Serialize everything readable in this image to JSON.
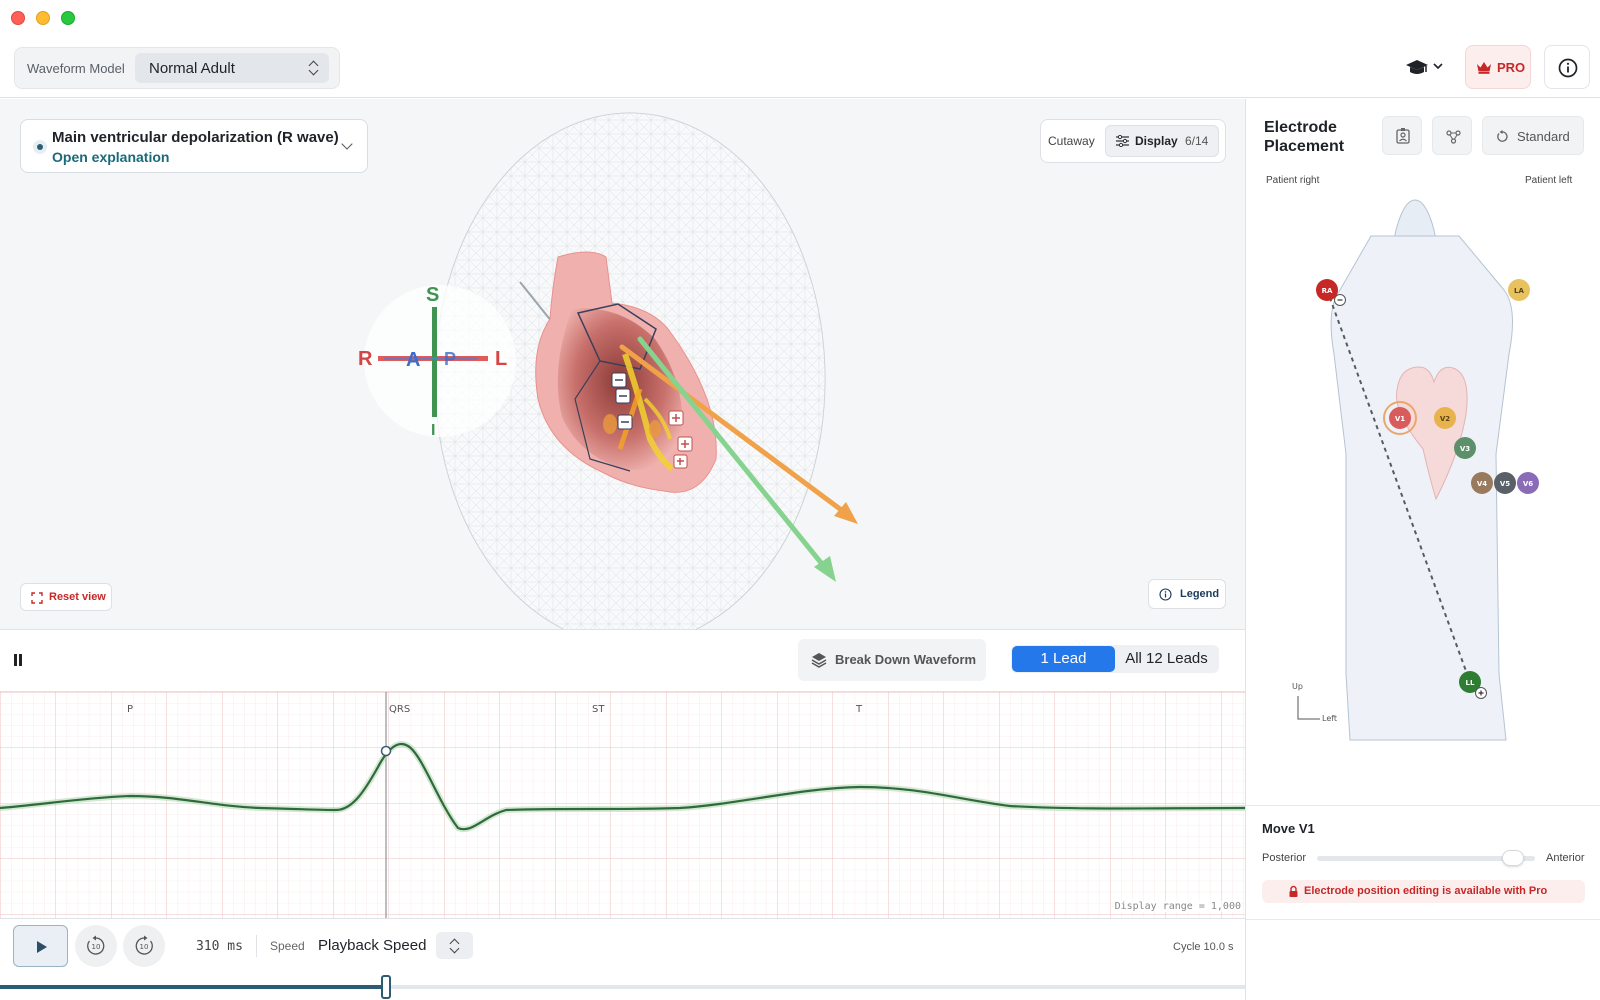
{
  "toolbar": {
    "waveform_model_label": "Waveform Model",
    "waveform_model_value": "Normal Adult",
    "learn_icon": "graduation-cap-icon",
    "pro_label": "PRO",
    "pro_icon": "crown-icon",
    "info_icon": "info-icon"
  },
  "view": {
    "step_title": "Main ventricular depolarization (R wave)",
    "step_link": "Open explanation",
    "cutaway_label": "Cutaway",
    "display_label": "Display",
    "display_count": "6/14",
    "reset_label": "Reset view",
    "legend_label": "Legend",
    "orientation": {
      "s": "S",
      "i": "I",
      "r": "R",
      "l": "L",
      "a": "A",
      "p": "P"
    }
  },
  "waveform": {
    "breakdown_label": "Break Down Waveform",
    "lead_options": [
      "1 Lead",
      "All 12 Leads"
    ],
    "selected_lead_option": "1 Lead",
    "segment_labels": [
      "P",
      "QRS",
      "ST",
      "T"
    ],
    "display_range": "Display range = 1,000"
  },
  "playback": {
    "time": "310 ms",
    "speed_label": "Speed",
    "speed_value": "Playback Speed",
    "cycle": "Cycle 10.0 s",
    "progress": 0.31,
    "skip_back_label": "10",
    "skip_forward_label": "10"
  },
  "electrodes": {
    "title": "Electrode Placement",
    "standard_label": "Standard",
    "patient_right": "Patient right",
    "patient_left": "Patient left",
    "axis_up": "Up",
    "axis_left": "Left",
    "labels": {
      "ra": "RA",
      "la": "LA",
      "ll": "LL",
      "v1": "V1",
      "v2": "V2",
      "v3": "V3",
      "v4": "V4",
      "v5": "V5",
      "v6": "V6"
    },
    "colors": {
      "ra": "#c62828",
      "la": "#e8c25e",
      "ll": "#2e7d32",
      "v1": "#d95c5c",
      "v2": "#e8b24c",
      "v3": "#5e8f6b",
      "v4": "#9a7a5c",
      "v5": "#5a6068",
      "v6": "#8a6bb8"
    },
    "move_title": "Move V1",
    "posterior_label": "Posterior",
    "anterior_label": "Anterior",
    "slider_value": 0.88,
    "pro_notice": "Electrode position editing is available with Pro"
  }
}
